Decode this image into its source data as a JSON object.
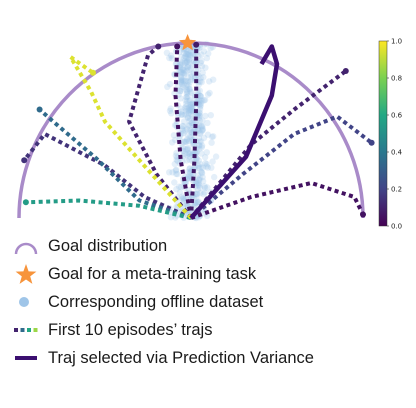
{
  "chart_data": {
    "type": "scatter",
    "description_free": true,
    "goal_arc": {
      "center": [
        0,
        0
      ],
      "radius": 1.0,
      "theta_range_deg": [
        0,
        180
      ]
    },
    "meta_training_goal": {
      "x": -0.02,
      "y": 1.0
    },
    "offline_dataset_center": {
      "x": 0.0,
      "spread_x": 0.1,
      "y_range": [
        0.0,
        1.0
      ],
      "n_points": 520
    },
    "trajectory_start": {
      "x": 0.0,
      "y": 0.0
    },
    "first_episodes": [
      {
        "color_value": 0.05,
        "points": [
          [
            0,
            0
          ],
          [
            -0.06,
            0.33
          ],
          [
            -0.09,
            0.7
          ],
          [
            -0.08,
            0.98
          ]
        ]
      },
      {
        "color_value": 0.08,
        "points": [
          [
            0,
            0
          ],
          [
            0.02,
            0.33
          ],
          [
            0.03,
            0.66
          ],
          [
            0.03,
            0.99
          ]
        ]
      },
      {
        "color_value": 0.1,
        "points": [
          [
            0,
            0
          ],
          [
            -0.2,
            0.25
          ],
          [
            -0.36,
            0.55
          ],
          [
            -0.25,
            0.93
          ],
          [
            -0.19,
            0.98
          ]
        ]
      },
      {
        "color_value": 0.15,
        "points": [
          [
            0,
            0
          ],
          [
            -0.27,
            0.12
          ],
          [
            -0.5,
            0.3
          ],
          [
            -0.85,
            0.48
          ],
          [
            -0.97,
            0.33
          ]
        ]
      },
      {
        "color_value": 0.35,
        "points": [
          [
            0,
            0
          ],
          [
            -0.3,
            0.1
          ],
          [
            -0.55,
            0.34
          ],
          [
            -0.8,
            0.55
          ],
          [
            -0.88,
            0.62
          ]
        ]
      },
      {
        "color_value": 0.55,
        "points": [
          [
            0,
            0
          ],
          [
            -0.3,
            0.07
          ],
          [
            -0.65,
            0.1
          ],
          [
            -0.96,
            0.09
          ]
        ]
      },
      {
        "color_value": 0.95,
        "points": [
          [
            0,
            0
          ],
          [
            -0.5,
            0.55
          ],
          [
            -0.58,
            0.72
          ],
          [
            -0.7,
            0.92
          ],
          [
            -0.57,
            0.83
          ]
        ]
      },
      {
        "color_value": 0.1,
        "points": [
          [
            0,
            0
          ],
          [
            0.35,
            0.42
          ],
          [
            0.6,
            0.62
          ],
          [
            0.9,
            0.84
          ]
        ]
      },
      {
        "color_value": 0.2,
        "points": [
          [
            0,
            0
          ],
          [
            0.3,
            0.25
          ],
          [
            0.6,
            0.48
          ],
          [
            0.85,
            0.58
          ],
          [
            1.05,
            0.43
          ]
        ]
      },
      {
        "color_value": 0.05,
        "points": [
          [
            0,
            0
          ],
          [
            0.35,
            0.12
          ],
          [
            0.7,
            0.2
          ],
          [
            0.95,
            0.12
          ],
          [
            1.0,
            0.02
          ]
        ]
      }
    ],
    "selected_trajectory": {
      "color_value": 0.0,
      "points": [
        [
          0,
          0
        ],
        [
          0.32,
          0.35
        ],
        [
          0.47,
          0.7
        ],
        [
          0.5,
          0.88
        ],
        [
          0.47,
          0.98
        ],
        [
          0.41,
          0.88
        ]
      ]
    },
    "colorbar": {
      "min": 0.0,
      "max": 1.0,
      "ticks": [
        "0.0",
        "0.2",
        "0.4",
        "0.6",
        "0.8",
        "1.0"
      ],
      "colormap": "viridis"
    },
    "legend": [
      {
        "key": "arc",
        "label": "Goal distribution"
      },
      {
        "key": "star",
        "label": "Goal for a meta-training task"
      },
      {
        "key": "dot",
        "label": "Corresponding offline dataset"
      },
      {
        "key": "dotted",
        "label": "First 10 episodes’ trajs"
      },
      {
        "key": "solid",
        "label": "Traj selected via Prediction Variance"
      }
    ]
  },
  "colors": {
    "arc": "#a98bc9",
    "star": "#f7943b",
    "dataset": "#9fc5e8",
    "selected": "#3b0f70"
  }
}
